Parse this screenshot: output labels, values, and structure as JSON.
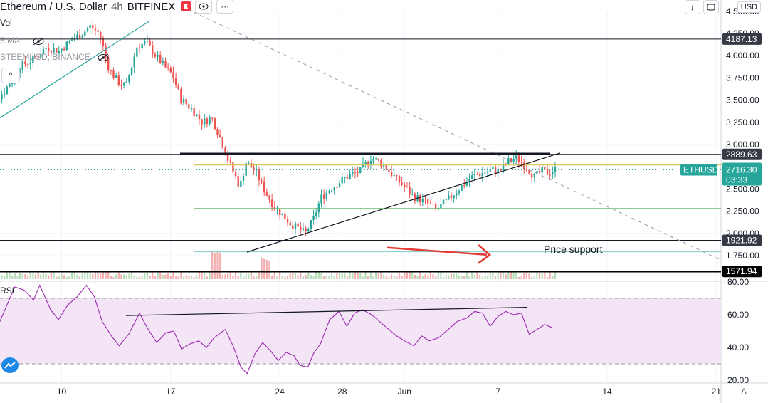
{
  "header": {
    "symbol_title": "Ethereum / U.S. Dollar",
    "interval": "4h",
    "exchange": "BITFINEX",
    "more_label": "···",
    "vol_label": "Vol",
    "ma_label": "5 MA",
    "compare_label": "STEEMUSD, BINANCE",
    "collapse_label": "^",
    "currency": "USD",
    "arrow_label": "↓"
  },
  "colors": {
    "up": "#26a69a",
    "down": "#ef5350",
    "rsi": "#9c27b0",
    "rsi_band": "#f3e5f5",
    "green": "#4caf50",
    "yellow": "#d4c24a"
  },
  "rsi_label": "RSI",
  "annotation": {
    "price_support": "Price support"
  },
  "chart_data": [
    {
      "type": "candlestick",
      "title": "Ethereum / U.S. Dollar · 4h · BITFINEX",
      "x_ticks": [
        {
          "label": "10",
          "day": 10
        },
        {
          "label": "17",
          "day": 17
        },
        {
          "label": "24",
          "day": 24
        },
        {
          "label": "28",
          "day": 28
        },
        {
          "label": "Jun",
          "day": 32
        },
        {
          "label": "7",
          "day": 38
        },
        {
          "label": "14",
          "day": 45
        },
        {
          "label": "21",
          "day": 52
        }
      ],
      "y_ticks": [
        1750,
        2000,
        2250,
        2500,
        2750,
        3000,
        3250,
        3500,
        3750,
        4000,
        4250,
        4500
      ],
      "ylim": [
        1550,
        4550
      ],
      "current_price": {
        "label": "ETHUSD",
        "price": "2716.30",
        "countdown": "03:33"
      },
      "price_levels": [
        {
          "price": 4187.13,
          "label": "4187.13",
          "color": "#131722"
        },
        {
          "price": 2889.63,
          "label": "2889.63",
          "color": "#131722"
        },
        {
          "price": 1921.92,
          "label": "1921.92",
          "color": "#131722"
        },
        {
          "price": 1571.94,
          "label": "1571.94",
          "color": "#000000"
        }
      ],
      "path": [
        [
          5,
          3350
        ],
        [
          6.5,
          3600
        ],
        [
          7.5,
          3880
        ],
        [
          8.3,
          3950
        ],
        [
          9.2,
          4100
        ],
        [
          10,
          4050
        ],
        [
          10.8,
          4180
        ],
        [
          11.5,
          4250
        ],
        [
          12,
          4330
        ],
        [
          12.6,
          4250
        ],
        [
          13.2,
          3850
        ],
        [
          13.8,
          3700
        ],
        [
          14.3,
          3650
        ],
        [
          15,
          4100
        ],
        [
          15.6,
          4150
        ],
        [
          16.2,
          4000
        ],
        [
          16.8,
          3870
        ],
        [
          17.3,
          3780
        ],
        [
          17.8,
          3520
        ],
        [
          18.5,
          3400
        ],
        [
          19.2,
          3250
        ],
        [
          19.8,
          3300
        ],
        [
          20.4,
          3050
        ],
        [
          20.9,
          2800
        ],
        [
          21.3,
          2650
        ],
        [
          21.6,
          2520
        ],
        [
          22,
          2800
        ],
        [
          22.6,
          2700
        ],
        [
          23.2,
          2480
        ],
        [
          23.8,
          2300
        ],
        [
          24.4,
          2200
        ],
        [
          24.9,
          2100
        ],
        [
          25.4,
          2050
        ],
        [
          25.8,
          2000
        ],
        [
          26.3,
          2150
        ],
        [
          26.8,
          2400
        ],
        [
          27.4,
          2500
        ],
        [
          28,
          2580
        ],
        [
          28.6,
          2650
        ],
        [
          29.3,
          2700
        ],
        [
          30,
          2850
        ],
        [
          30.6,
          2800
        ],
        [
          31.2,
          2700
        ],
        [
          31.7,
          2600
        ],
        [
          32.2,
          2520
        ],
        [
          32.7,
          2420
        ],
        [
          33.2,
          2380
        ],
        [
          33.7,
          2330
        ],
        [
          34.2,
          2270
        ],
        [
          34.8,
          2350
        ],
        [
          35.4,
          2460
        ],
        [
          36,
          2560
        ],
        [
          36.6,
          2650
        ],
        [
          37.2,
          2680
        ],
        [
          37.8,
          2720
        ],
        [
          38.3,
          2700
        ],
        [
          38.8,
          2810
        ],
        [
          39.4,
          2850
        ],
        [
          40,
          2740
        ],
        [
          40.5,
          2640
        ],
        [
          41,
          2700
        ],
        [
          41.4,
          2680
        ],
        [
          41.8,
          2720
        ]
      ],
      "volume_hint": "volume bars along the bottom of the price pane",
      "rsi": {
        "ticks": [
          20,
          40,
          60,
          80
        ],
        "band": [
          30,
          70
        ],
        "path": [
          [
            5,
            63
          ],
          [
            6,
            55
          ],
          [
            7,
            77
          ],
          [
            7.6,
            75
          ],
          [
            8.2,
            69
          ],
          [
            8.6,
            78
          ],
          [
            9.3,
            63
          ],
          [
            9.8,
            57
          ],
          [
            10.4,
            66
          ],
          [
            11,
            71
          ],
          [
            11.6,
            78
          ],
          [
            12.1,
            71
          ],
          [
            12.6,
            56
          ],
          [
            13.2,
            47
          ],
          [
            13.7,
            41
          ],
          [
            14.3,
            48
          ],
          [
            15,
            61
          ],
          [
            15.5,
            52
          ],
          [
            16.1,
            43
          ],
          [
            16.7,
            49
          ],
          [
            17.2,
            50
          ],
          [
            17.7,
            39
          ],
          [
            18.2,
            42
          ],
          [
            18.8,
            44
          ],
          [
            19.3,
            40
          ],
          [
            19.8,
            46
          ],
          [
            20.5,
            51
          ],
          [
            21,
            41
          ],
          [
            21.5,
            28
          ],
          [
            21.9,
            24
          ],
          [
            22.4,
            36
          ],
          [
            22.9,
            43
          ],
          [
            23.4,
            38
          ],
          [
            23.9,
            32
          ],
          [
            24.4,
            37
          ],
          [
            24.9,
            35
          ],
          [
            25.3,
            29
          ],
          [
            25.8,
            28
          ],
          [
            26.2,
            37
          ],
          [
            26.6,
            42
          ],
          [
            27.2,
            57
          ],
          [
            27.8,
            62
          ],
          [
            28.3,
            53
          ],
          [
            28.8,
            61
          ],
          [
            29.3,
            63
          ],
          [
            29.9,
            60
          ],
          [
            30.5,
            55
          ],
          [
            31,
            51
          ],
          [
            31.5,
            47
          ],
          [
            32,
            44
          ],
          [
            32.6,
            41
          ],
          [
            33.1,
            47
          ],
          [
            33.6,
            44
          ],
          [
            34.2,
            46
          ],
          [
            34.8,
            51
          ],
          [
            35.4,
            56
          ],
          [
            36,
            58
          ],
          [
            36.5,
            62
          ],
          [
            37,
            61
          ],
          [
            37.5,
            53
          ],
          [
            38,
            59
          ],
          [
            38.5,
            62
          ],
          [
            39,
            60
          ],
          [
            39.5,
            61
          ],
          [
            40,
            48
          ],
          [
            40.5,
            51
          ],
          [
            41,
            54
          ],
          [
            41.5,
            52
          ]
        ]
      }
    }
  ]
}
